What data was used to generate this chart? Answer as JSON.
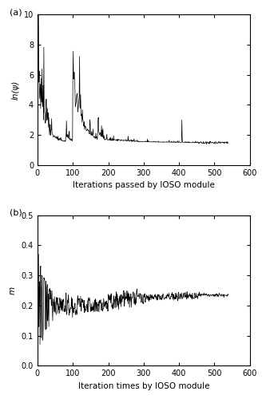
{
  "fig_width": 3.33,
  "fig_height": 5.0,
  "dpi": 100,
  "subplot_a": {
    "label": "(a)",
    "xlabel": "Iterations passed by IOSO module",
    "ylabel": "ln(ψ)",
    "xlim": [
      0,
      600
    ],
    "ylim": [
      0,
      10
    ],
    "xticks": [
      0,
      100,
      200,
      300,
      400,
      500,
      600
    ],
    "yticks": [
      0,
      2,
      4,
      6,
      8,
      10
    ]
  },
  "subplot_b": {
    "label": "(b)",
    "xlabel": "Iteration times by IOSO module",
    "ylabel": "m",
    "xlim": [
      0,
      600
    ],
    "ylim": [
      0.0,
      0.5
    ],
    "xticks": [
      0,
      100,
      200,
      300,
      400,
      500,
      600
    ],
    "yticks": [
      0.0,
      0.1,
      0.2,
      0.3,
      0.4,
      0.5
    ]
  },
  "line_color": "#000000",
  "line_width": 0.5,
  "bg_color": "#ffffff",
  "label_fontsize": 7.5,
  "tick_fontsize": 7,
  "panel_label_fontsize": 8
}
